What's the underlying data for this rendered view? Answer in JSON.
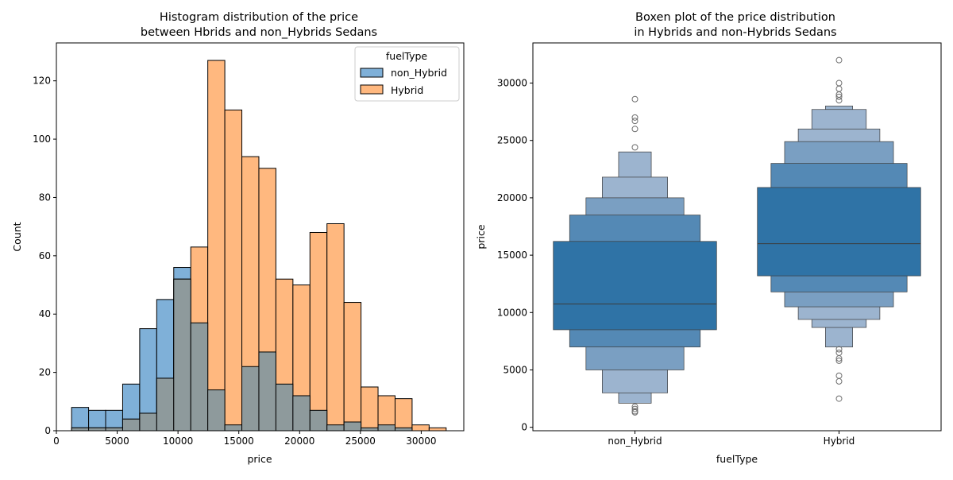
{
  "chart_data": [
    {
      "type": "bar",
      "subtype": "overlapping-histogram",
      "title": [
        "Histogram distribution of the price",
        "between Hbrids and non_Hybrids Sedans"
      ],
      "xlabel": "price",
      "ylabel": "Count",
      "xlim": [
        0,
        33500
      ],
      "ylim": [
        0,
        133
      ],
      "xticks": [
        0,
        5000,
        10000,
        15000,
        20000,
        25000,
        30000
      ],
      "yticks": [
        0,
        20,
        40,
        60,
        80,
        100,
        120
      ],
      "bin_edges": [
        1250,
        2650,
        4050,
        5450,
        6850,
        8250,
        9650,
        11050,
        12450,
        13850,
        15250,
        16650,
        18050,
        19450,
        20850,
        22250,
        23650,
        25050,
        26450,
        27850,
        29250,
        30650,
        32050
      ],
      "legend": {
        "title": "fuelType",
        "position": "upper-right"
      },
      "series": [
        {
          "name": "non_Hybrid",
          "color": "#7fb0d8",
          "values": [
            8,
            7,
            7,
            16,
            35,
            45,
            56,
            37,
            0,
            0,
            0,
            0,
            0,
            0,
            0,
            0,
            0,
            0,
            0,
            0,
            0,
            0
          ]
        },
        {
          "name": "Hybrid",
          "color": "#ffb87f",
          "values": [
            1,
            1,
            1,
            4,
            6,
            18,
            52,
            63,
            127,
            110,
            94,
            90,
            52,
            50,
            68,
            71,
            44,
            15,
            12,
            11,
            2,
            1
          ]
        }
      ],
      "overlap_counts": [
        1,
        1,
        1,
        4,
        6,
        18,
        52,
        37,
        14,
        2,
        22,
        27,
        16,
        12,
        7,
        2,
        3,
        1,
        2,
        1,
        0,
        0
      ],
      "overlap_color": "#8e9a9c"
    },
    {
      "type": "boxen",
      "title": [
        "Boxen plot of the price distribution",
        "in Hybrids and non-Hybrids Sedans"
      ],
      "xlabel": "fuelType",
      "ylabel": "price",
      "ylim": [
        -300,
        33500
      ],
      "yticks": [
        0,
        5000,
        10000,
        15000,
        20000,
        25000,
        30000
      ],
      "categories": [
        "non_Hybrid",
        "Hybrid"
      ],
      "series": [
        {
          "name": "non_Hybrid",
          "median": 10750,
          "boxes": [
            [
              8500,
              16200
            ],
            [
              7000,
              18500
            ],
            [
              5000,
              20000
            ],
            [
              3000,
              21800
            ],
            [
              2100,
              24000
            ]
          ],
          "outliers": [
            1300,
            1400,
            1600,
            1800,
            24400,
            26000,
            26700,
            27000,
            28600
          ]
        },
        {
          "name": "Hybrid",
          "median": 16000,
          "boxes": [
            [
              13200,
              20900
            ],
            [
              11800,
              23000
            ],
            [
              10500,
              24900
            ],
            [
              9400,
              26000
            ],
            [
              8700,
              27700
            ],
            [
              7000,
              28000
            ]
          ],
          "outliers": [
            2500,
            4000,
            4500,
            5800,
            6000,
            6500,
            6800,
            28500,
            28800,
            29000,
            29500,
            30000,
            32000
          ]
        }
      ],
      "colors": [
        "#2f73a6",
        "#5489b5",
        "#7a9fc2",
        "#9cb4cf"
      ]
    }
  ]
}
